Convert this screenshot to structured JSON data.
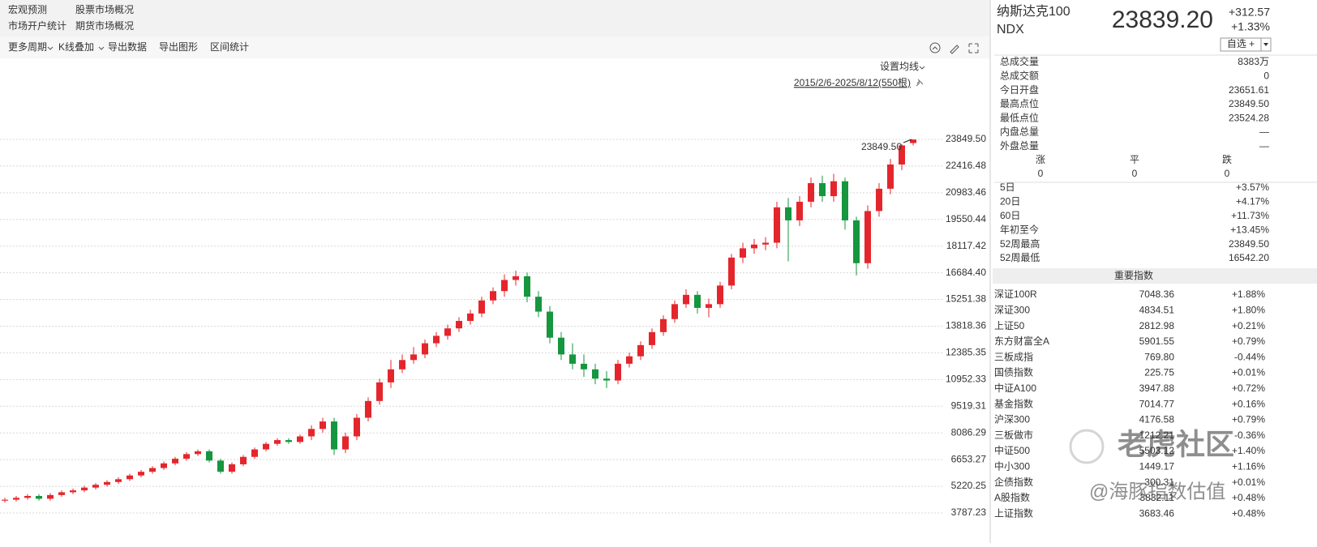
{
  "menu": {
    "items": [
      "宏观预测",
      "股票市场概况",
      "市场开户统计",
      "期货市场概况"
    ]
  },
  "toolbar": {
    "items": [
      "更多周期",
      "K线叠加",
      "导出数据",
      "导出图形",
      "区间统计"
    ]
  },
  "chart_data": {
    "type": "candlestick",
    "ma_setting": "设置均线",
    "range_label": "2015/2/6-2025/8/12(550根)",
    "up_color": "#e4262c",
    "down_color": "#15963f",
    "grid": true,
    "ylim": [
      3265,
      28070
    ],
    "yticks": [
      3787.23,
      5220.25,
      6653.27,
      8086.29,
      9519.31,
      10952.33,
      12385.35,
      13818.36,
      15251.38,
      {
        "value": 16684.4,
        "label": "16684.40"
      },
      18117.42,
      19550.44,
      20983.46,
      22416.48,
      {
        "value": 23849.5,
        "label": "23849.50"
      }
    ],
    "annotation": {
      "value": 23849.5,
      "label": "23849.50"
    },
    "candles": [
      [
        4450,
        4600,
        4350,
        4500
      ],
      [
        4500,
        4700,
        4400,
        4600
      ],
      [
        4600,
        4800,
        4500,
        4700
      ],
      [
        4700,
        4800,
        4450,
        4550
      ],
      [
        4550,
        4850,
        4450,
        4750
      ],
      [
        4750,
        5000,
        4650,
        4900
      ],
      [
        4900,
        5100,
        4800,
        5000
      ],
      [
        5000,
        5250,
        4900,
        5150
      ],
      [
        5150,
        5400,
        5050,
        5300
      ],
      [
        5300,
        5550,
        5200,
        5450
      ],
      [
        5450,
        5700,
        5350,
        5600
      ],
      [
        5600,
        5900,
        5500,
        5800
      ],
      [
        5800,
        6100,
        5700,
        6000
      ],
      [
        6000,
        6300,
        5900,
        6200
      ],
      [
        6200,
        6550,
        6100,
        6450
      ],
      [
        6450,
        6800,
        6350,
        6700
      ],
      [
        6700,
        7050,
        6600,
        6950
      ],
      [
        6950,
        7200,
        6850,
        7100
      ],
      [
        7100,
        7200,
        6500,
        6600
      ],
      [
        6600,
        6700,
        5900,
        6000
      ],
      [
        6000,
        6500,
        5900,
        6400
      ],
      [
        6400,
        6900,
        6300,
        6800
      ],
      [
        6800,
        7300,
        6700,
        7200
      ],
      [
        7200,
        7600,
        7100,
        7500
      ],
      [
        7500,
        7800,
        7400,
        7700
      ],
      [
        7700,
        7800,
        7500,
        7600
      ],
      [
        7600,
        8000,
        7500,
        7900
      ],
      [
        7900,
        8500,
        7700,
        8300
      ],
      [
        8300,
        8900,
        8100,
        8700
      ],
      [
        8700,
        8900,
        6900,
        7200
      ],
      [
        7200,
        8100,
        7000,
        7900
      ],
      [
        7900,
        9100,
        7700,
        8900
      ],
      [
        8900,
        10000,
        8700,
        9800
      ],
      [
        9800,
        11000,
        9600,
        10800
      ],
      [
        10800,
        12000,
        10500,
        11500
      ],
      [
        11500,
        12300,
        11300,
        12000
      ],
      [
        12000,
        12700,
        11800,
        12300
      ],
      [
        12300,
        13100,
        12100,
        12900
      ],
      [
        12900,
        13500,
        12700,
        13300
      ],
      [
        13300,
        13900,
        13100,
        13700
      ],
      [
        13700,
        14300,
        13500,
        14100
      ],
      [
        14100,
        14700,
        13900,
        14500
      ],
      [
        14500,
        15400,
        14300,
        15200
      ],
      [
        15200,
        15900,
        15000,
        15700
      ],
      [
        15700,
        16600,
        15400,
        16300
      ],
      [
        16300,
        16800,
        16000,
        16500
      ],
      [
        16500,
        16700,
        15100,
        15400
      ],
      [
        15400,
        15700,
        14300,
        14600
      ],
      [
        14600,
        14900,
        12900,
        13200
      ],
      [
        13200,
        13500,
        12000,
        12300
      ],
      [
        12300,
        12900,
        11500,
        11800
      ],
      [
        11800,
        12300,
        11100,
        11500
      ],
      [
        11500,
        11800,
        10700,
        11000
      ],
      [
        11000,
        11400,
        10500,
        10900
      ],
      [
        10900,
        12000,
        10700,
        11800
      ],
      [
        11800,
        12400,
        11600,
        12200
      ],
      [
        12200,
        13000,
        12000,
        12800
      ],
      [
        12800,
        13700,
        12600,
        13500
      ],
      [
        13500,
        14400,
        13300,
        14200
      ],
      [
        14200,
        15200,
        14000,
        15000
      ],
      [
        15000,
        15800,
        14800,
        15500
      ],
      [
        15500,
        15700,
        14500,
        14800
      ],
      [
        14800,
        15300,
        14300,
        15000
      ],
      [
        15000,
        16200,
        14800,
        16000
      ],
      [
        16000,
        17700,
        15800,
        17500
      ],
      [
        17500,
        18300,
        17200,
        18000
      ],
      [
        18000,
        18500,
        17700,
        18200
      ],
      [
        18200,
        18600,
        17900,
        18300
      ],
      [
        18300,
        20500,
        18000,
        20200
      ],
      [
        20200,
        20700,
        17300,
        19500
      ],
      [
        19500,
        20800,
        19200,
        20500
      ],
      [
        20500,
        21800,
        20200,
        21500
      ],
      [
        21500,
        21900,
        20500,
        20800
      ],
      [
        20800,
        22000,
        20500,
        21600
      ],
      [
        21600,
        21800,
        19000,
        19500
      ],
      [
        19500,
        19700,
        16542.2,
        17200
      ],
      [
        17200,
        20300,
        16900,
        20000
      ],
      [
        20000,
        21500,
        19700,
        21200
      ],
      [
        21200,
        22800,
        20900,
        22500
      ],
      [
        22500,
        23600,
        22200,
        23526.63
      ],
      [
        23651.61,
        23849.5,
        23524.28,
        23839.2
      ]
    ]
  },
  "quote": {
    "name": "纳斯达克100",
    "code": "NDX",
    "price": "23839.20",
    "change": "+312.57",
    "change_pct": "+1.33%",
    "watchlist": "自选 +"
  },
  "stats": [
    {
      "label": "总成交量",
      "value": "8383万",
      "color": "#333333"
    },
    {
      "label": "总成交额",
      "value": "0",
      "color": "#333333"
    },
    {
      "label": "今日开盘",
      "value": "23651.61",
      "color": "#e4262c"
    },
    {
      "label": "最高点位",
      "value": "23849.50",
      "color": "#e4262c"
    },
    {
      "label": "最低点位",
      "value": "23524.28",
      "color": "#15963f"
    },
    {
      "label": "内盘总量",
      "value": "—",
      "color": "#333333"
    },
    {
      "label": "外盘总量",
      "value": "—",
      "color": "#333333"
    }
  ],
  "breadth": [
    {
      "label": "涨",
      "value": "0",
      "color": "#e4262c"
    },
    {
      "label": "平",
      "value": "0",
      "color": "#19b5c9"
    },
    {
      "label": "跌",
      "value": "0",
      "color": "#15963f"
    }
  ],
  "returns": [
    {
      "label": "5日",
      "value": "+3.57%",
      "color": "#e4262c"
    },
    {
      "label": "20日",
      "value": "+4.17%",
      "color": "#e4262c"
    },
    {
      "label": "60日",
      "value": "+11.73%",
      "color": "#e4262c"
    },
    {
      "label": "年初至今",
      "value": "+13.45%",
      "color": "#e4262c"
    },
    {
      "label": "52周最高",
      "value": "23849.50",
      "color": "#e4262c"
    },
    {
      "label": "52周最低",
      "value": "16542.20",
      "color": "#15963f"
    }
  ],
  "indices": {
    "title": "重要指数",
    "rows": [
      [
        "深证100R",
        "7048.36",
        "+1.88%"
      ],
      [
        "深证300",
        "4834.51",
        "+1.80%"
      ],
      [
        "上证50",
        "2812.98",
        "+0.21%"
      ],
      [
        "东方财富全A",
        "5901.55",
        "+0.79%"
      ],
      [
        "三板成指",
        "769.80",
        "-0.44%"
      ],
      [
        "国债指数",
        "225.75",
        "+0.01%"
      ],
      [
        "中证A100",
        "3947.88",
        "+0.72%"
      ],
      [
        "基金指数",
        "7014.77",
        "+0.16%"
      ],
      [
        "沪深300",
        "4176.58",
        "+0.79%"
      ],
      [
        "三板做市",
        "1212.21",
        "-0.36%"
      ],
      [
        "中证500",
        "5503.12",
        "+1.40%"
      ],
      [
        "中小300",
        "1449.17",
        "+1.16%"
      ],
      [
        "企债指数",
        "300.31",
        "+0.01%"
      ],
      [
        "A股指数",
        "3832.11",
        "+0.48%"
      ],
      [
        "上证指数",
        "3683.46",
        "+0.48%"
      ]
    ]
  },
  "watermark": {
    "brand": "老虎社区",
    "author": "@海豚指数估值"
  }
}
